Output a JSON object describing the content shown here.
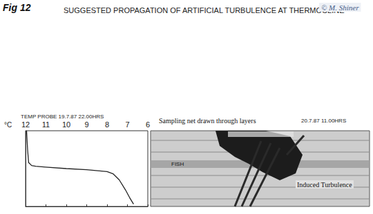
{
  "chart_data": {
    "type": "line",
    "figure_label": "Fig 12",
    "title": "SUGGESTED PROPAGATION OF ARTIFICIAL TURBULENCE AT THERMOCLINE",
    "credit": "© M. Shiner",
    "subtitle": "TEMP PROBE 19.7.87 22.00HRS",
    "x_label": "°C",
    "x": [
      11.95,
      11.9,
      11.85,
      11.7,
      11.5,
      11,
      10,
      9,
      8,
      7.7,
      7.4,
      7.1,
      6.9,
      6.7
    ],
    "values": [
      100,
      75,
      58,
      54,
      53,
      52,
      50,
      48.5,
      46,
      43,
      35,
      22,
      12,
      3
    ],
    "xlim": [
      12,
      6
    ],
    "xticks": [
      12,
      11,
      10,
      9,
      8,
      7,
      6
    ],
    "ylim": [
      0,
      100
    ],
    "tick_labels": "x",
    "color": "#222222",
    "echogram_caption": "Sampling net drawn through layers",
    "echogram_date": "20.7.87 11.00HRS",
    "fish_label": "FISH",
    "turbulence_label": "Induced Turbulence"
  }
}
